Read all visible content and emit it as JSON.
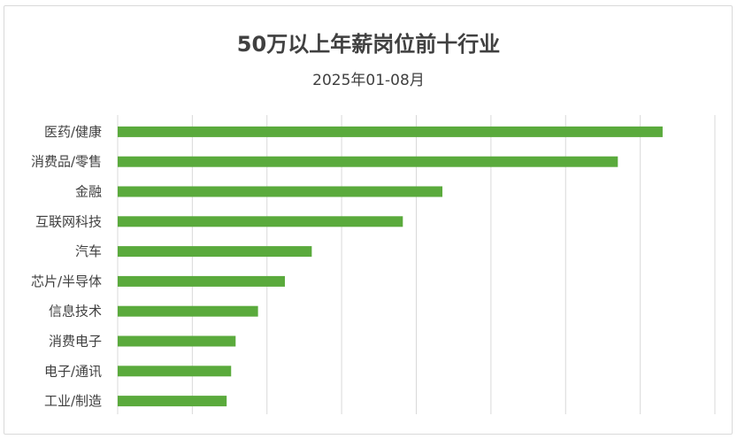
{
  "chart_data": {
    "type": "bar",
    "orientation": "horizontal",
    "title": "50万以上年薪岗位前十行业",
    "subtitle": "2025年01-08月",
    "categories": [
      "医药/健康",
      "消费品/零售",
      "金融",
      "互联网科技",
      "汽车",
      "芯片/半导体",
      "信息技术",
      "消费电子",
      "电子/通讯",
      "工业/制造"
    ],
    "values": [
      7.3,
      6.7,
      4.35,
      3.82,
      2.6,
      2.24,
      1.88,
      1.58,
      1.52,
      1.46
    ],
    "xlim": [
      0,
      8
    ],
    "grid": true,
    "legend": "none",
    "bar_color": "#5aaa3c"
  }
}
